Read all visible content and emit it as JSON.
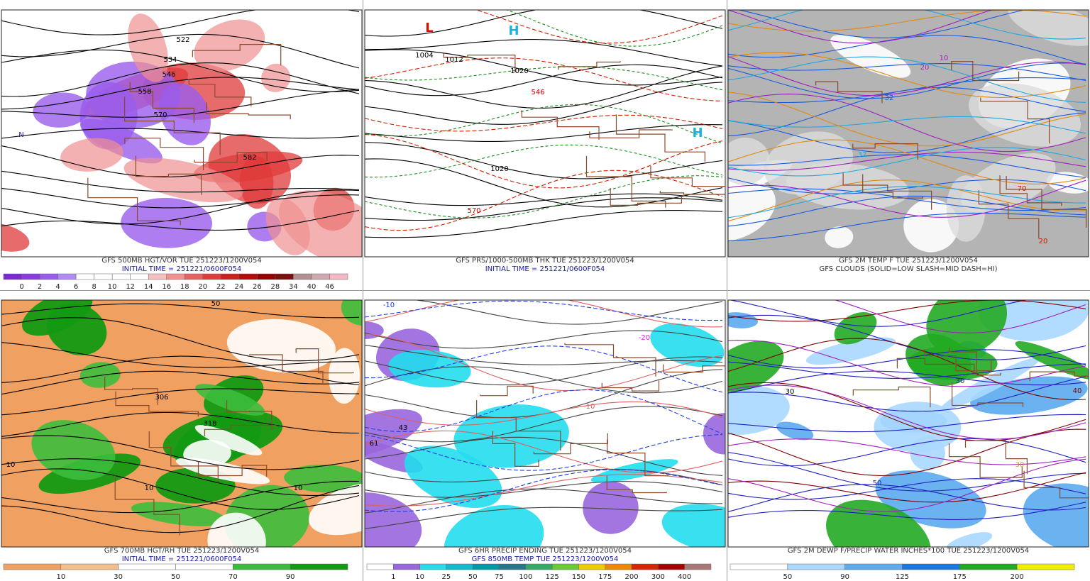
{
  "panels": [
    {
      "title": "GFS 500MB HGT/VOR TUE 251223/1200V054",
      "subtitle": "INITIAL TIME = 251221/0600F054",
      "colorbar": {
        "labels": [
          0,
          2,
          4,
          6,
          8,
          10,
          12,
          14,
          16,
          18,
          20,
          22,
          24,
          26,
          28,
          34,
          40,
          46
        ],
        "colors": [
          "#7b28d8",
          "#8a3ce4",
          "#9a5cec",
          "#b08cf2",
          "#ffffff",
          "#ffffff",
          "#ffffff",
          "#ffffff",
          "#f6c0c0",
          "#f09090",
          "#e86060",
          "#e03a3a",
          "#d02020",
          "#b80c0c",
          "#980000",
          "#7a1010",
          "#b09090",
          "#d0a8b0",
          "#f4b8c4"
        ]
      },
      "map_labels": [
        "522",
        "534",
        "546",
        "558",
        "570",
        "582",
        "N"
      ]
    },
    {
      "title": "GFS PRS/1000-500MB THK TUE 251223/1200V054",
      "subtitle": "INITIAL TIME = 251221/0600F054",
      "map_labels": [
        "L",
        "H",
        "1004",
        "1012",
        "1020",
        "546",
        "1020",
        "570",
        "H"
      ]
    },
    {
      "title": "GFS 2M TEMP F TUE 251223/1200V054",
      "subtitle": "GFS CLOUDS (SOLID=LOW SLASH=MID DASH=HI)",
      "map_labels": [
        "32",
        "20",
        "10",
        "32",
        "70",
        "20"
      ]
    },
    {
      "title": "GFS 700MB HGT/RH TUE 251223/1200V054",
      "subtitle": "INITIAL TIME = 251221/0600F054",
      "colorbar": {
        "labels": [
          10,
          30,
          50,
          70,
          90
        ],
        "colors": [
          "#f0a060",
          "#f5bd8a",
          "#ffffff",
          "#ffffff",
          "#3cbc3c",
          "#129a12"
        ]
      },
      "map_labels": [
        "10",
        "10",
        "306",
        "318",
        "50",
        "10"
      ]
    },
    {
      "title": "GFS 6HR PRECIP ENDING TUE 251223/1200V054",
      "subtitle": "GFS 850MB TEMP TUE 251223/1200V054",
      "colorbar": {
        "labels": [
          1,
          10,
          25,
          50,
          75,
          100,
          125,
          150,
          175,
          200,
          300,
          400
        ],
        "colors": [
          "#ffffff",
          "#9966dd",
          "#22ddee",
          "#11bbcc",
          "#0099aa",
          "#227788",
          "#33aa66",
          "#66cc33",
          "#eecc00",
          "#ee8800",
          "#dd2200",
          "#aa0000",
          "#aa7777"
        ]
      },
      "map_labels": [
        "-10",
        "-20",
        "43",
        "61",
        "10"
      ]
    },
    {
      "title": "GFS 2M DEWP F/PRECIP WATER INCHES*100 TUE 251223/1200V054",
      "colorbar": {
        "labels": [
          50,
          90,
          125,
          175,
          200
        ],
        "colors": [
          "#ffffff",
          "#aad8ff",
          "#5aaaee",
          "#1a78dd",
          "#22aa22",
          "#eeee00"
        ]
      },
      "map_labels": [
        "30",
        "30",
        "40",
        "30",
        "50"
      ]
    }
  ]
}
